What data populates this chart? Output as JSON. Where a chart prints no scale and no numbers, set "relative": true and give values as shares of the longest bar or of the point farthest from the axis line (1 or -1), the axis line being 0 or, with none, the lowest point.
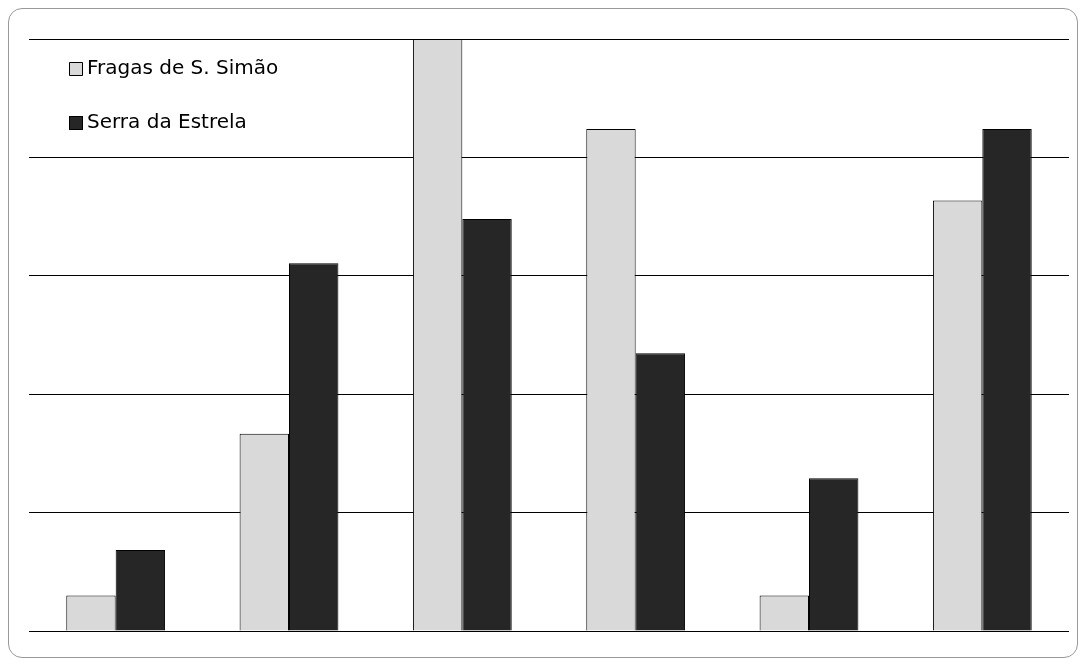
{
  "chart_data": {
    "type": "bar",
    "relative": true,
    "categories": [
      null,
      null,
      null,
      null,
      null,
      null
    ],
    "series": [
      {
        "name": "Fragas de S. Simão",
        "color": "#d9d9d9",
        "values": [
          0.06,
          0.333,
          1,
          0.848,
          0.06,
          0.727
        ]
      },
      {
        "name": "Serra da Estrela",
        "color": "#262626",
        "values": [
          0.137,
          0.621,
          0.696,
          0.469,
          0.258,
          0.848
        ]
      }
    ],
    "grid": "y",
    "legend": "top left"
  }
}
